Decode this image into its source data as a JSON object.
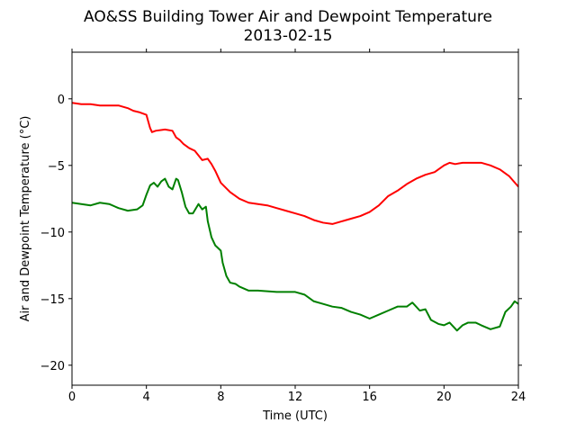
{
  "chart_data": {
    "type": "line",
    "title": "AO&SS Building Tower Air and Dewpoint Temperature",
    "subtitle": "2013-02-15",
    "xlabel": "Time (UTC)",
    "ylabel": "Air and Dewpoint Temperature (°C)",
    "xlim": [
      0,
      24
    ],
    "ylim": [
      -21.5,
      3.5
    ],
    "xticks": [
      0,
      4,
      8,
      12,
      16,
      20,
      24
    ],
    "xtick_labels": [
      "0",
      "4",
      "8",
      "12",
      "16",
      "20",
      "24"
    ],
    "yticks": [
      0,
      -5,
      -10,
      -15,
      -20
    ],
    "ytick_labels": [
      "0",
      "−5",
      "−10",
      "−15",
      "−20"
    ],
    "grid": false,
    "legend": "none",
    "series": [
      {
        "color": "#ff0000",
        "x": [
          0,
          0.5,
          1,
          1.5,
          2,
          2.5,
          3,
          3.3,
          3.6,
          4,
          4.1,
          4.2,
          4.3,
          4.5,
          5,
          5.4,
          5.6,
          5.8,
          6,
          6.3,
          6.6,
          7,
          7.3,
          7.5,
          7.7,
          8,
          8.5,
          9,
          9.5,
          10,
          10.5,
          11,
          11.5,
          12,
          12.5,
          13,
          13.5,
          14,
          14.5,
          15,
          15.5,
          16,
          16.5,
          17,
          17.5,
          18,
          18.5,
          19,
          19.5,
          20,
          20.3,
          20.6,
          21,
          21.5,
          22,
          22.5,
          23,
          23.5,
          24
        ],
        "y": [
          -0.3,
          -0.4,
          -0.4,
          -0.5,
          -0.5,
          -0.5,
          -0.7,
          -0.9,
          -1.0,
          -1.2,
          -1.7,
          -2.2,
          -2.5,
          -2.4,
          -2.3,
          -2.4,
          -2.9,
          -3.1,
          -3.4,
          -3.7,
          -3.9,
          -4.6,
          -4.5,
          -4.9,
          -5.4,
          -6.3,
          -7.0,
          -7.5,
          -7.8,
          -7.9,
          -8.0,
          -8.2,
          -8.4,
          -8.6,
          -8.8,
          -9.1,
          -9.3,
          -9.4,
          -9.2,
          -9.0,
          -8.8,
          -8.5,
          -8.0,
          -7.3,
          -6.9,
          -6.4,
          -6.0,
          -5.7,
          -5.5,
          -5.0,
          -4.8,
          -4.9,
          -4.8,
          -4.8,
          -4.8,
          -5.0,
          -5.3,
          -5.8,
          -6.6
        ]
      },
      {
        "color": "#008000",
        "x": [
          0,
          0.5,
          1,
          1.5,
          2,
          2.5,
          3,
          3.5,
          3.8,
          4,
          4.2,
          4.4,
          4.6,
          4.8,
          5,
          5.2,
          5.4,
          5.6,
          5.7,
          5.9,
          6.1,
          6.3,
          6.5,
          6.8,
          7,
          7.2,
          7.3,
          7.5,
          7.7,
          8,
          8.1,
          8.3,
          8.5,
          8.8,
          9,
          9.5,
          10,
          11,
          12,
          12.5,
          13,
          13.5,
          14,
          14.5,
          15,
          15.5,
          16,
          16.5,
          17,
          17.5,
          18,
          18.3,
          18.7,
          19,
          19.3,
          19.7,
          20,
          20.3,
          20.7,
          21,
          21.3,
          21.7,
          22,
          22.5,
          23,
          23.3,
          23.6,
          23.8,
          24
        ],
        "y": [
          -7.8,
          -7.9,
          -8.0,
          -7.8,
          -7.9,
          -8.2,
          -8.4,
          -8.3,
          -8.0,
          -7.2,
          -6.5,
          -6.3,
          -6.6,
          -6.2,
          -6.0,
          -6.6,
          -6.8,
          -6.0,
          -6.1,
          -7.0,
          -8.1,
          -8.6,
          -8.6,
          -7.9,
          -8.3,
          -8.1,
          -9.2,
          -10.4,
          -11.0,
          -11.4,
          -12.3,
          -13.3,
          -13.8,
          -13.9,
          -14.1,
          -14.4,
          -14.4,
          -14.5,
          -14.5,
          -14.7,
          -15.2,
          -15.4,
          -15.6,
          -15.7,
          -16.0,
          -16.2,
          -16.5,
          -16.2,
          -15.9,
          -15.6,
          -15.6,
          -15.3,
          -15.9,
          -15.8,
          -16.6,
          -16.9,
          -17.0,
          -16.8,
          -17.4,
          -17.0,
          -16.8,
          -16.8,
          -17.0,
          -17.3,
          -17.1,
          -16.0,
          -15.6,
          -15.2,
          -15.4
        ]
      }
    ]
  }
}
